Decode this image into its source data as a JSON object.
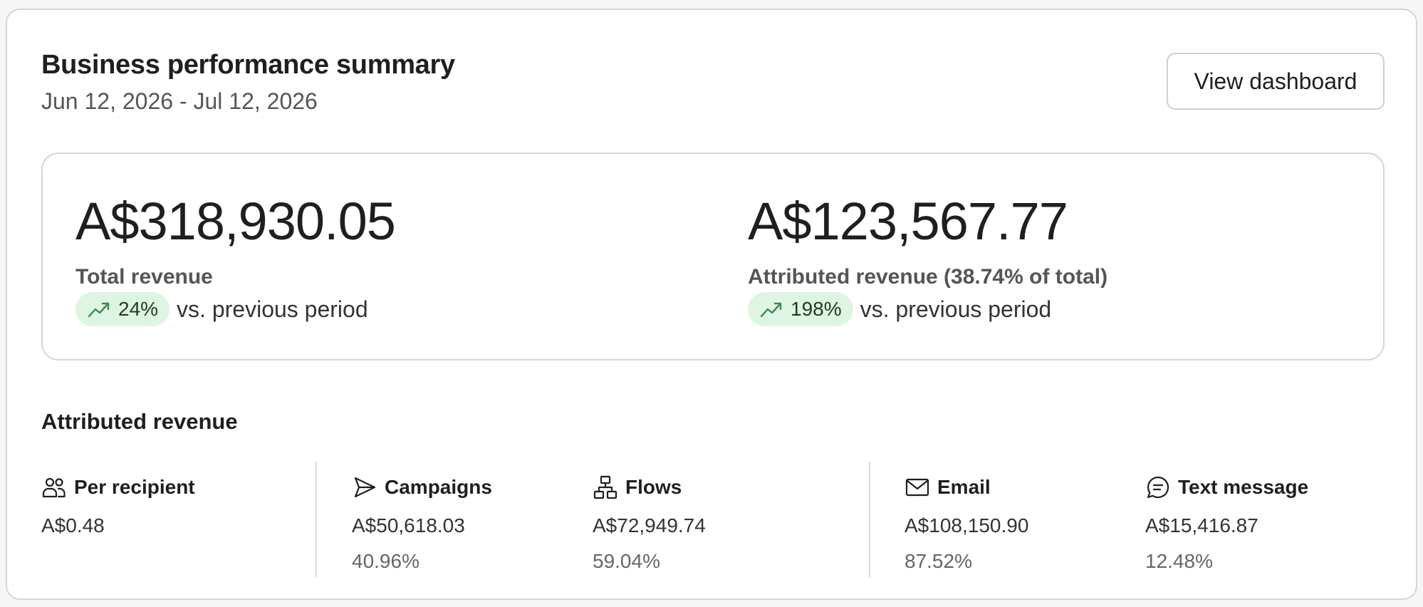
{
  "header": {
    "title": "Business performance summary",
    "date_range": "Jun 12, 2026 - Jul 12, 2026",
    "view_button_label": "View dashboard"
  },
  "summary": {
    "total": {
      "value": "A$318,930.05",
      "label": "Total revenue",
      "change": "24%",
      "trend_direction": "up",
      "comparison_text": "vs. previous period"
    },
    "attributed": {
      "value": "A$123,567.77",
      "label": "Attributed revenue (38.74% of total)",
      "change": "198%",
      "trend_direction": "up",
      "comparison_text": "vs. previous period"
    }
  },
  "attributed_section": {
    "title": "Attributed revenue",
    "stats": [
      {
        "icon": "people-icon",
        "label": "Per recipient",
        "value": "A$0.48",
        "percent": ""
      },
      {
        "icon": "send-icon",
        "label": "Campaigns",
        "value": "A$50,618.03",
        "percent": "40.96%"
      },
      {
        "icon": "flow-icon",
        "label": "Flows",
        "value": "A$72,949.74",
        "percent": "59.04%"
      },
      {
        "icon": "envelope-icon",
        "label": "Email",
        "value": "A$108,150.90",
        "percent": "87.52%"
      },
      {
        "icon": "chat-icon",
        "label": "Text message",
        "value": "A$15,416.87",
        "percent": "12.48%"
      }
    ]
  },
  "colors": {
    "trend_pill_bg": "#dff5e3",
    "trend_icon": "#3a8a52",
    "border": "#d6d6d6"
  }
}
